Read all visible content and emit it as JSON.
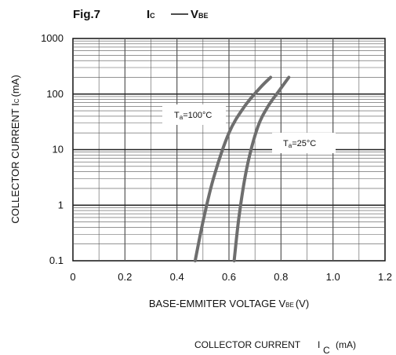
{
  "figure": {
    "number": "Fig.7",
    "relation_y": "I",
    "relation_y_sub": "C",
    "relation_x": "V",
    "relation_x_sub": "BE"
  },
  "footer": {
    "text": "COLLECTOR CURRENT",
    "symbol": "I",
    "symbol_sub": "C",
    "unit": "(mA)"
  },
  "chart_data": {
    "type": "line",
    "title": "",
    "xlabel_main": "BASE-EMMITER VOLTAGE V",
    "xlabel_sub": "BE",
    "xlabel_unit": "(V)",
    "ylabel_main": "COLLECTOR CURRENT I",
    "ylabel_sub": "C",
    "ylabel_unit": "(mA)",
    "xlim": [
      0,
      1.2
    ],
    "ylim": [
      0.1,
      1000
    ],
    "yscale": "log",
    "grid": true,
    "x_ticks": [
      {
        "value": 0,
        "label": "0"
      },
      {
        "value": 0.2,
        "label": "0.2"
      },
      {
        "value": 0.4,
        "label": "0.4"
      },
      {
        "value": 0.6,
        "label": "0.6"
      },
      {
        "value": 0.8,
        "label": "0.8"
      },
      {
        "value": 1.0,
        "label": "1.0"
      },
      {
        "value": 1.2,
        "label": "1.2"
      }
    ],
    "y_ticks": [
      {
        "value": 0.1,
        "label": "0.1"
      },
      {
        "value": 1,
        "label": "1"
      },
      {
        "value": 10,
        "label": "10"
      },
      {
        "value": 100,
        "label": "100"
      },
      {
        "value": 1000,
        "label": "1000"
      }
    ],
    "series": [
      {
        "label_main": "T",
        "label_sub": "a",
        "label_rest": "=100°C",
        "color": "#6e6e6e",
        "x": [
          0.47,
          0.5,
          0.54,
          0.6,
          0.66,
          0.72,
          0.76
        ],
        "y": [
          0.1,
          0.5,
          3,
          20,
          60,
          130,
          200
        ]
      },
      {
        "label_main": "T",
        "label_sub": "a",
        "label_rest": "=25°C",
        "color": "#6e6e6e",
        "x": [
          0.62,
          0.64,
          0.67,
          0.71,
          0.75,
          0.79,
          0.83
        ],
        "y": [
          0.1,
          0.7,
          5,
          25,
          60,
          110,
          200
        ]
      }
    ]
  }
}
